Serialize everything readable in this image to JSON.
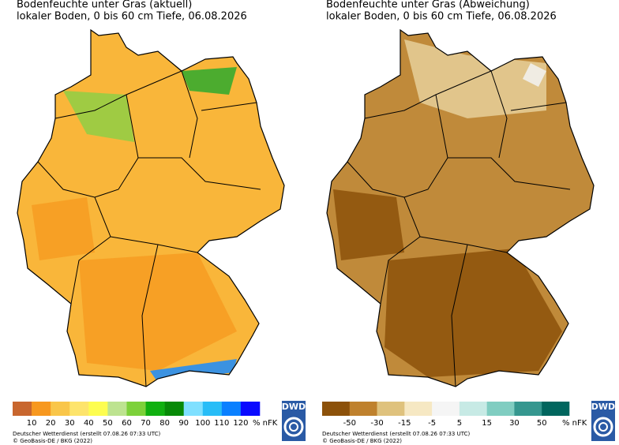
{
  "panels": [
    {
      "title": "Bodenfeuchte unter Gras (aktuell)",
      "subtitle": "lokaler Boden, 0 bis 60 cm Tiefe, 06.08.2026",
      "legend": {
        "colors": [
          "#c8662e",
          "#f7981f",
          "#f9c64a",
          "#fde46c",
          "#fdfd50",
          "#bde390",
          "#7dd13a",
          "#10b010",
          "#078a07",
          "#7fe0ff",
          "#28bdf7",
          "#0a80ff",
          "#0a0aff"
        ],
        "ticks": [
          10,
          20,
          30,
          40,
          50,
          60,
          70,
          80,
          90,
          100,
          110,
          120
        ],
        "unit": "% nFK"
      },
      "credits": [
        "Deutscher Wetterdienst (erstellt 07.08.26 07:33 UTC)",
        "© GeoBasis-DE / BKG (2022)"
      ],
      "logo": "DWD"
    },
    {
      "title": "Bodenfeuchte unter Gras (Abweichung)",
      "subtitle": "lokaler Boden, 0 bis 60 cm Tiefe, 06.08.2026",
      "legend": {
        "colors": [
          "#8c510a",
          "#bf812d",
          "#dfc27d",
          "#f6e8c3",
          "#f5f5f5",
          "#c7eae5",
          "#80cdc1",
          "#35978f",
          "#01665e"
        ],
        "ticks": [
          -50,
          -30,
          -15,
          -5,
          5,
          15,
          30,
          50
        ],
        "unit": "% nFK"
      },
      "credits": [
        "Deutscher Wetterdienst (erstellt 07.08.26 07:33 UTC)",
        "© GeoBasis-DE / BKG (2022)"
      ],
      "logo": "DWD"
    }
  ]
}
